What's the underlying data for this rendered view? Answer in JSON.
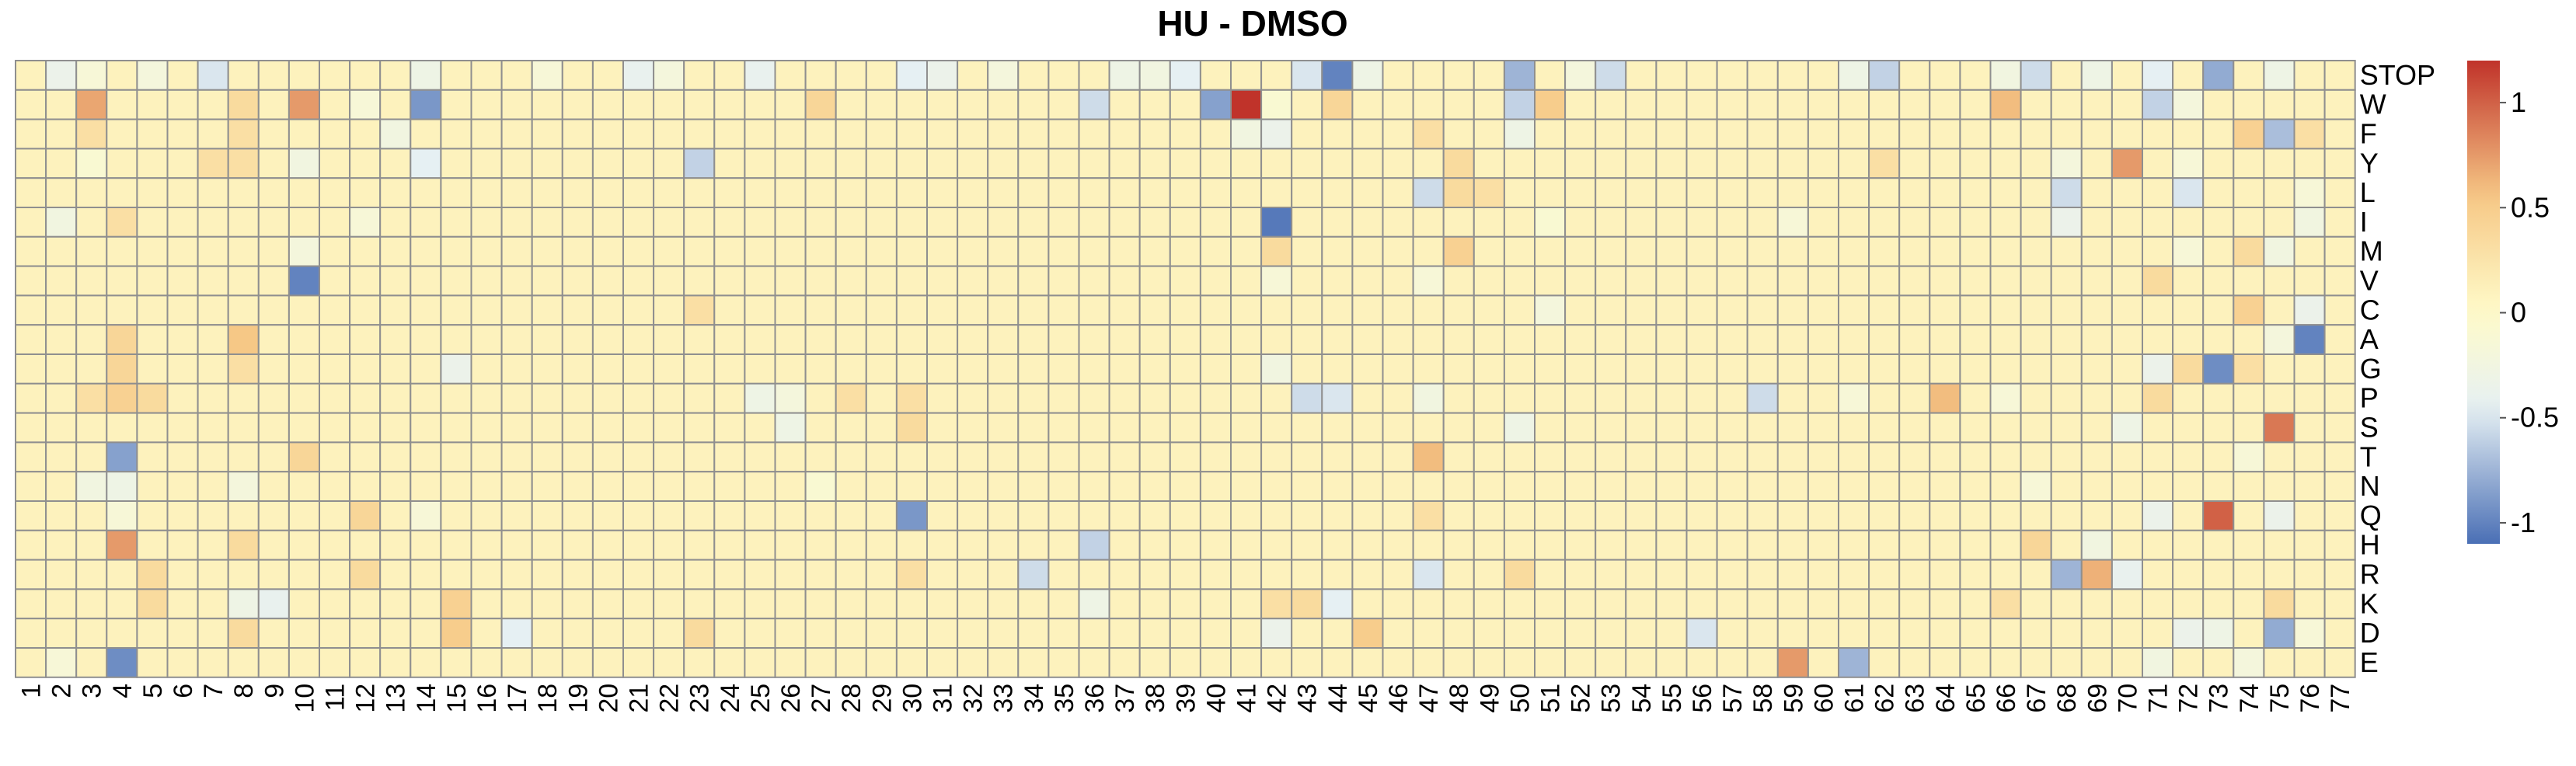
{
  "chart_data": {
    "type": "heatmap",
    "title": "HU - DMSO",
    "columns": [
      "1",
      "2",
      "3",
      "4",
      "5",
      "6",
      "7",
      "8",
      "9",
      "10",
      "11",
      "12",
      "13",
      "14",
      "15",
      "16",
      "17",
      "18",
      "19",
      "20",
      "21",
      "22",
      "23",
      "24",
      "25",
      "26",
      "27",
      "28",
      "29",
      "30",
      "31",
      "32",
      "33",
      "34",
      "35",
      "36",
      "37",
      "38",
      "39",
      "40",
      "41",
      "42",
      "43",
      "44",
      "45",
      "46",
      "47",
      "48",
      "49",
      "50",
      "51",
      "52",
      "53",
      "54",
      "55",
      "56",
      "57",
      "58",
      "59",
      "60",
      "61",
      "62",
      "63",
      "64",
      "65",
      "66",
      "67",
      "68",
      "69",
      "70",
      "71",
      "72",
      "73",
      "74",
      "75",
      "76",
      "77"
    ],
    "rows": [
      "STOP",
      "W",
      "F",
      "Y",
      "L",
      "I",
      "M",
      "V",
      "C",
      "A",
      "G",
      "P",
      "S",
      "T",
      "N",
      "Q",
      "H",
      "R",
      "K",
      "D",
      "E"
    ],
    "value_range": [
      -1.1,
      1.2
    ],
    "legend": {
      "position": "right",
      "ticks": [
        1,
        0.5,
        0,
        -0.5,
        -1
      ],
      "tick_labels": [
        "1",
        "0.5",
        "0",
        "-0.5",
        "-1"
      ]
    },
    "colors": {
      "low": "#4a6fb5",
      "mid_low": "#e6f0f3",
      "mid": "#fffbc9",
      "mid_high": "#f6c886",
      "high": "#c0332a"
    },
    "background_value": 0.1,
    "cells": [
      [
        "STOP",
        "2",
        -0.35
      ],
      [
        "STOP",
        "3",
        -0.15
      ],
      [
        "STOP",
        "5",
        -0.2
      ],
      [
        "STOP",
        "7",
        -0.5
      ],
      [
        "STOP",
        "14",
        -0.3
      ],
      [
        "STOP",
        "18",
        -0.15
      ],
      [
        "STOP",
        "21",
        -0.4
      ],
      [
        "STOP",
        "22",
        -0.2
      ],
      [
        "STOP",
        "25",
        -0.4
      ],
      [
        "STOP",
        "30",
        -0.45
      ],
      [
        "STOP",
        "31",
        -0.35
      ],
      [
        "STOP",
        "33",
        -0.2
      ],
      [
        "STOP",
        "37",
        -0.3
      ],
      [
        "STOP",
        "38",
        -0.25
      ],
      [
        "STOP",
        "39",
        -0.45
      ],
      [
        "STOP",
        "43",
        -0.5
      ],
      [
        "STOP",
        "44",
        -1.0
      ],
      [
        "STOP",
        "45",
        -0.3
      ],
      [
        "STOP",
        "50",
        -0.75
      ],
      [
        "STOP",
        "52",
        -0.2
      ],
      [
        "STOP",
        "53",
        -0.55
      ],
      [
        "STOP",
        "61",
        -0.3
      ],
      [
        "STOP",
        "62",
        -0.6
      ],
      [
        "STOP",
        "66",
        -0.25
      ],
      [
        "STOP",
        "67",
        -0.55
      ],
      [
        "STOP",
        "69",
        -0.3
      ],
      [
        "STOP",
        "71",
        -0.45
      ],
      [
        "STOP",
        "73",
        -0.8
      ],
      [
        "STOP",
        "75",
        -0.3
      ],
      [
        "W",
        "3",
        0.7
      ],
      [
        "W",
        "8",
        0.35
      ],
      [
        "W",
        "10",
        0.75
      ],
      [
        "W",
        "12",
        -0.15
      ],
      [
        "W",
        "14",
        -0.9
      ],
      [
        "W",
        "27",
        0.4
      ],
      [
        "W",
        "36",
        -0.55
      ],
      [
        "W",
        "40",
        -0.85
      ],
      [
        "W",
        "41",
        1.2
      ],
      [
        "W",
        "42",
        -0.1
      ],
      [
        "W",
        "44",
        0.4
      ],
      [
        "W",
        "50",
        -0.6
      ],
      [
        "W",
        "51",
        0.5
      ],
      [
        "W",
        "66",
        0.6
      ],
      [
        "W",
        "71",
        -0.6
      ],
      [
        "W",
        "72",
        -0.2
      ],
      [
        "F",
        "3",
        0.3
      ],
      [
        "F",
        "8",
        0.3
      ],
      [
        "F",
        "13",
        -0.25
      ],
      [
        "F",
        "41",
        -0.25
      ],
      [
        "F",
        "42",
        -0.35
      ],
      [
        "F",
        "47",
        0.3
      ],
      [
        "F",
        "50",
        -0.3
      ],
      [
        "F",
        "74",
        0.45
      ],
      [
        "F",
        "75",
        -0.7
      ],
      [
        "F",
        "76",
        0.3
      ],
      [
        "Y",
        "3",
        -0.1
      ],
      [
        "Y",
        "7",
        0.3
      ],
      [
        "Y",
        "8",
        0.3
      ],
      [
        "Y",
        "10",
        -0.25
      ],
      [
        "Y",
        "14",
        -0.45
      ],
      [
        "Y",
        "23",
        -0.6
      ],
      [
        "Y",
        "48",
        0.35
      ],
      [
        "Y",
        "62",
        0.3
      ],
      [
        "Y",
        "68",
        -0.2
      ],
      [
        "Y",
        "70",
        0.75
      ],
      [
        "Y",
        "72",
        -0.15
      ],
      [
        "L",
        "47",
        -0.55
      ],
      [
        "L",
        "48",
        0.35
      ],
      [
        "L",
        "49",
        0.3
      ],
      [
        "L",
        "68",
        -0.55
      ],
      [
        "L",
        "72",
        -0.5
      ],
      [
        "L",
        "76",
        -0.15
      ],
      [
        "I",
        "2",
        -0.25
      ],
      [
        "I",
        "4",
        0.3
      ],
      [
        "I",
        "12",
        -0.15
      ],
      [
        "I",
        "42",
        -1.05
      ],
      [
        "I",
        "51",
        -0.1
      ],
      [
        "I",
        "59",
        -0.15
      ],
      [
        "I",
        "68",
        -0.35
      ],
      [
        "I",
        "76",
        -0.25
      ],
      [
        "M",
        "10",
        -0.2
      ],
      [
        "M",
        "42",
        0.35
      ],
      [
        "M",
        "48",
        0.45
      ],
      [
        "M",
        "72",
        -0.15
      ],
      [
        "M",
        "74",
        0.35
      ],
      [
        "M",
        "75",
        -0.25
      ],
      [
        "V",
        "10",
        -1.0
      ],
      [
        "V",
        "42",
        -0.15
      ],
      [
        "V",
        "47",
        -0.15
      ],
      [
        "V",
        "71",
        0.35
      ],
      [
        "C",
        "23",
        0.3
      ],
      [
        "C",
        "51",
        -0.2
      ],
      [
        "C",
        "74",
        0.45
      ],
      [
        "C",
        "76",
        -0.35
      ],
      [
        "A",
        "4",
        0.4
      ],
      [
        "A",
        "8",
        0.55
      ],
      [
        "A",
        "75",
        -0.2
      ],
      [
        "A",
        "76",
        -1.0
      ],
      [
        "G",
        "4",
        0.4
      ],
      [
        "G",
        "8",
        0.3
      ],
      [
        "G",
        "15",
        -0.35
      ],
      [
        "G",
        "42",
        -0.25
      ],
      [
        "G",
        "71",
        -0.35
      ],
      [
        "G",
        "72",
        0.35
      ],
      [
        "G",
        "73",
        -0.95
      ],
      [
        "G",
        "74",
        0.3
      ],
      [
        "P",
        "3",
        0.3
      ],
      [
        "P",
        "4",
        0.45
      ],
      [
        "P",
        "5",
        0.35
      ],
      [
        "P",
        "25",
        -0.3
      ],
      [
        "P",
        "26",
        -0.2
      ],
      [
        "P",
        "28",
        0.3
      ],
      [
        "P",
        "30",
        0.3
      ],
      [
        "P",
        "43",
        -0.55
      ],
      [
        "P",
        "44",
        -0.5
      ],
      [
        "P",
        "47",
        -0.25
      ],
      [
        "P",
        "58",
        -0.55
      ],
      [
        "P",
        "61",
        -0.15
      ],
      [
        "P",
        "64",
        0.6
      ],
      [
        "P",
        "66",
        -0.15
      ],
      [
        "P",
        "71",
        0.35
      ],
      [
        "S",
        "26",
        -0.3
      ],
      [
        "S",
        "30",
        0.35
      ],
      [
        "S",
        "50",
        -0.3
      ],
      [
        "S",
        "70",
        -0.3
      ],
      [
        "S",
        "75",
        0.9
      ],
      [
        "T",
        "4",
        -0.85
      ],
      [
        "T",
        "10",
        0.4
      ],
      [
        "T",
        "47",
        0.6
      ],
      [
        "T",
        "74",
        -0.15
      ],
      [
        "N",
        "3",
        -0.25
      ],
      [
        "N",
        "4",
        -0.3
      ],
      [
        "N",
        "8",
        -0.2
      ],
      [
        "N",
        "27",
        -0.1
      ],
      [
        "N",
        "67",
        -0.15
      ],
      [
        "Q",
        "4",
        -0.15
      ],
      [
        "Q",
        "12",
        0.4
      ],
      [
        "Q",
        "14",
        -0.15
      ],
      [
        "Q",
        "30",
        -0.9
      ],
      [
        "Q",
        "47",
        0.3
      ],
      [
        "Q",
        "71",
        -0.35
      ],
      [
        "Q",
        "73",
        1.0
      ],
      [
        "Q",
        "75",
        -0.35
      ],
      [
        "H",
        "4",
        0.75
      ],
      [
        "H",
        "8",
        0.35
      ],
      [
        "H",
        "36",
        -0.6
      ],
      [
        "H",
        "67",
        0.4
      ],
      [
        "H",
        "69",
        -0.25
      ],
      [
        "R",
        "5",
        0.35
      ],
      [
        "R",
        "12",
        0.35
      ],
      [
        "R",
        "30",
        0.3
      ],
      [
        "R",
        "34",
        -0.55
      ],
      [
        "R",
        "47",
        -0.5
      ],
      [
        "R",
        "50",
        0.35
      ],
      [
        "R",
        "68",
        -0.75
      ],
      [
        "R",
        "69",
        0.65
      ],
      [
        "R",
        "70",
        -0.4
      ],
      [
        "K",
        "5",
        0.35
      ],
      [
        "K",
        "8",
        -0.3
      ],
      [
        "K",
        "9",
        -0.4
      ],
      [
        "K",
        "15",
        0.45
      ],
      [
        "K",
        "36",
        -0.3
      ],
      [
        "K",
        "42",
        0.3
      ],
      [
        "K",
        "43",
        0.35
      ],
      [
        "K",
        "44",
        -0.45
      ],
      [
        "K",
        "66",
        0.3
      ],
      [
        "K",
        "75",
        0.35
      ],
      [
        "D",
        "8",
        0.35
      ],
      [
        "D",
        "15",
        0.5
      ],
      [
        "D",
        "17",
        -0.45
      ],
      [
        "D",
        "23",
        0.35
      ],
      [
        "D",
        "42",
        -0.35
      ],
      [
        "D",
        "45",
        0.5
      ],
      [
        "D",
        "56",
        -0.5
      ],
      [
        "D",
        "72",
        -0.35
      ],
      [
        "D",
        "73",
        -0.3
      ],
      [
        "D",
        "75",
        -0.8
      ],
      [
        "D",
        "76",
        -0.15
      ],
      [
        "E",
        "2",
        -0.15
      ],
      [
        "E",
        "4",
        -0.95
      ],
      [
        "E",
        "59",
        0.75
      ],
      [
        "E",
        "61",
        -0.75
      ],
      [
        "E",
        "71",
        -0.25
      ],
      [
        "E",
        "74",
        -0.2
      ]
    ]
  }
}
